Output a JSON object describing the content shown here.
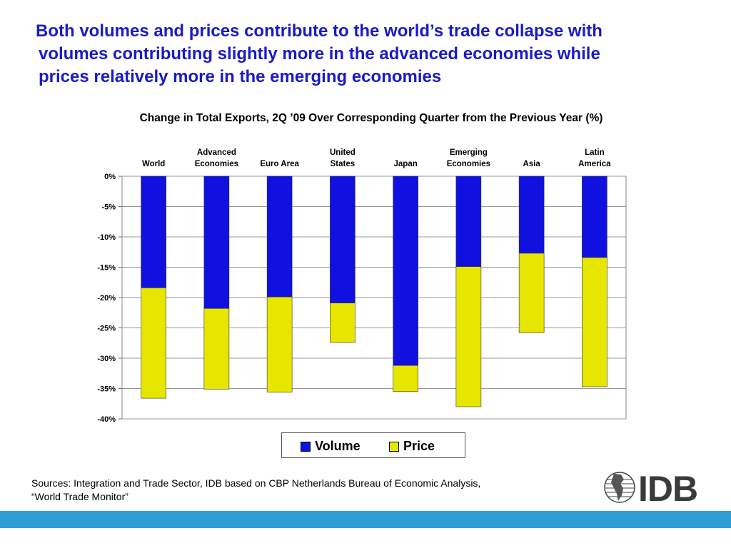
{
  "slide": {
    "title_lines": [
      "Both volumes and prices contribute to the world’s trade collapse with",
      "volumes contributing slightly more in the advanced economies while",
      "prices relatively more in the emerging economies"
    ],
    "sources_lines": [
      "Sources: Integration and Trade Sector, IDB based on CBP Netherlands Bureau of Economic Analysis,",
      "“World Trade Monitor”"
    ],
    "logo_text": "IDB",
    "bottom_bar_color": "#2e9fd6"
  },
  "chart_data": {
    "type": "bar",
    "stacked": true,
    "title": "Change in Total Exports, 2Q ’09 Over Corresponding Quarter from the Previous Year (%)",
    "categories": [
      [
        "World"
      ],
      [
        "Advanced",
        "Economies"
      ],
      [
        "Euro Area"
      ],
      [
        "United",
        "States"
      ],
      [
        "Japan"
      ],
      [
        "Emerging",
        "Economies"
      ],
      [
        "Asia"
      ],
      [
        "Latin",
        "America"
      ]
    ],
    "series": [
      {
        "name": "Volume",
        "color": "#1010e0",
        "values": [
          -18.4,
          -21.8,
          -19.9,
          -20.9,
          -31.2,
          -14.9,
          -12.7,
          -13.4
        ]
      },
      {
        "name": "Price",
        "color": "#e6e600",
        "values": [
          -18.2,
          -13.3,
          -15.7,
          -6.5,
          -4.3,
          -23.1,
          -13.1,
          -21.3
        ]
      }
    ],
    "ylim": [
      -40,
      0
    ],
    "yticks": [
      0,
      -5,
      -10,
      -15,
      -20,
      -25,
      -30,
      -35,
      -40
    ],
    "ytick_labels": [
      "0%",
      "-5%",
      "-10%",
      "-15%",
      "-20%",
      "-25%",
      "-30%",
      "-35%",
      "-40%"
    ],
    "grid": true,
    "legend_position": "bottom"
  }
}
